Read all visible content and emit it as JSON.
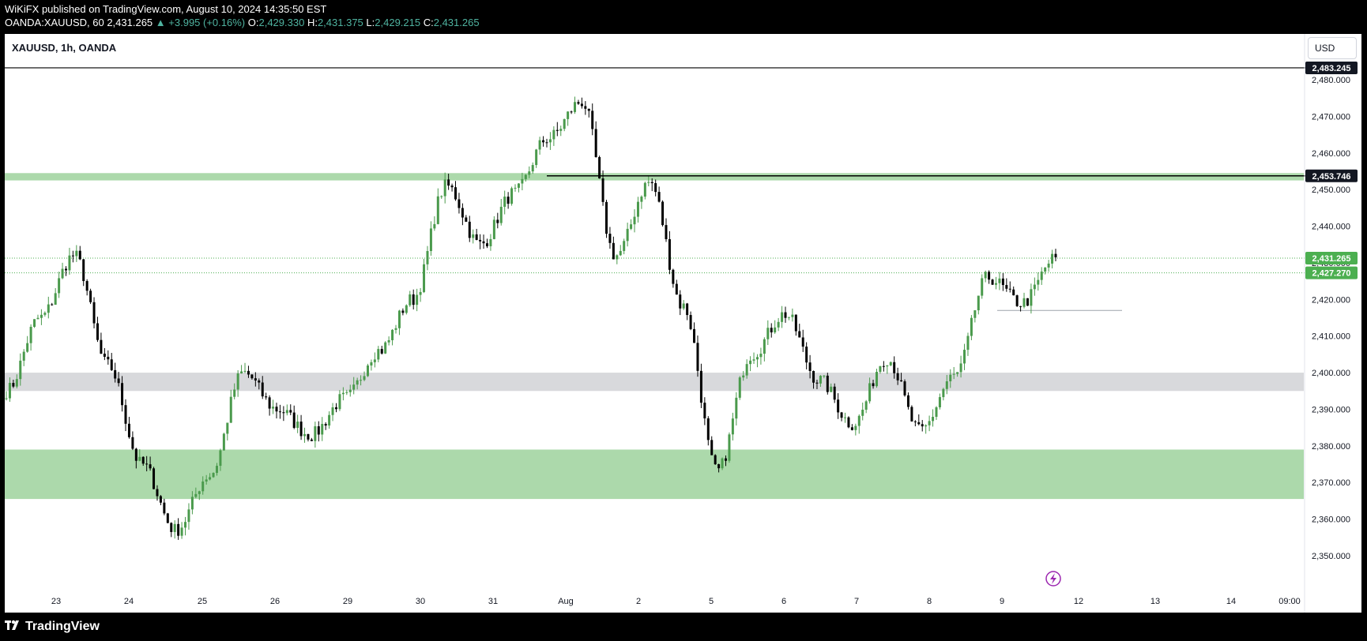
{
  "header": {
    "published_line": "WiKiFX published on TradingView.com, August 10, 2024 14:35:50 EST",
    "ticker": "OANDA:XAUUSD, 60",
    "last": "2,431.265",
    "change": "▲ +3.995 (+0.16%)",
    "o_label": "O:",
    "o_value": "2,429.330",
    "h_label": "H:",
    "h_value": "2,431.375",
    "l_label": "L:",
    "l_value": "2,429.215",
    "c_label": "C:",
    "c_value": "2,431.265"
  },
  "chart_header": {
    "symbol": "XAUUSD, 1h, OANDA",
    "currency_button": "USD"
  },
  "brand": {
    "name": "TradingView",
    "logo_icon": "tradingview-logo-icon"
  },
  "colors": {
    "up": "#4a9a4c",
    "down": "#000000",
    "zone_green": "#acd9ab",
    "zone_gray": "#d8d9dc",
    "label_green": "#4caf50",
    "label_dark": "#131722"
  },
  "chart_data": {
    "type": "candlestick",
    "ylim": [
      2343,
      2486
    ],
    "y_ticks": [
      "2,350.000",
      "2,360.000",
      "2,370.000",
      "2,380.000",
      "2,390.000",
      "2,400.000",
      "2,410.000",
      "2,420.000",
      "2,430.000",
      "2,440.000",
      "2,450.000",
      "2,460.000",
      "2,470.000",
      "2,480.000"
    ],
    "y_tick_values": [
      2350,
      2360,
      2370,
      2380,
      2390,
      2400,
      2410,
      2420,
      2430,
      2440,
      2450,
      2460,
      2470,
      2480
    ],
    "x_labels": [
      "23",
      "24",
      "25",
      "26",
      "29",
      "30",
      "31",
      "Aug",
      "2",
      "5",
      "6",
      "7",
      "8",
      "9",
      "12",
      "13",
      "14",
      "09:00"
    ],
    "price_labels": [
      {
        "text": "2,483.245",
        "value": 2483.245,
        "style": "dark"
      },
      {
        "text": "2,453.746",
        "value": 2453.746,
        "style": "dark"
      },
      {
        "text": "2,431.265",
        "value": 2431.265,
        "style": "green"
      },
      {
        "text": "2,427.270",
        "value": 2427.27,
        "style": "green"
      }
    ],
    "zones": [
      {
        "name": "resistance-zone",
        "from": 2452.5,
        "to": 2454.5,
        "color": "green"
      },
      {
        "name": "pivot-zone",
        "from": 2395,
        "to": 2400,
        "color": "gray"
      },
      {
        "name": "support-zone",
        "from": 2365.5,
        "to": 2379,
        "color": "green"
      }
    ],
    "lines": [
      {
        "name": "top-line",
        "value": 2483.245
      },
      {
        "name": "resistance-line",
        "value": 2453.746
      },
      {
        "name": "local-low-line",
        "value": 2417
      }
    ],
    "anchors": [
      {
        "label": "23",
        "value": 2395
      },
      {
        "label": "24",
        "value": 2415
      },
      {
        "label": "24b",
        "value": 2432
      },
      {
        "label": "25",
        "value": 2402
      },
      {
        "label": "25b",
        "value": 2375
      },
      {
        "label": "26",
        "value": 2357
      },
      {
        "label": "26b",
        "value": 2372
      },
      {
        "label": "29",
        "value": 2400
      },
      {
        "label": "29b",
        "value": 2390
      },
      {
        "label": "30",
        "value": 2383
      },
      {
        "label": "30b",
        "value": 2393
      },
      {
        "label": "31",
        "value": 2406
      },
      {
        "label": "31b",
        "value": 2420
      },
      {
        "label": "Aug",
        "value": 2451
      },
      {
        "label": "Aug1b",
        "value": 2435
      },
      {
        "label": "Aug1c",
        "value": 2449
      },
      {
        "label": "2",
        "value": 2464
      },
      {
        "label": "2b",
        "value": 2474
      },
      {
        "label": "2c",
        "value": 2432
      },
      {
        "label": "5",
        "value": 2452
      },
      {
        "label": "5b",
        "value": 2418
      },
      {
        "label": "5c",
        "value": 2373
      },
      {
        "label": "5d",
        "value": 2405
      },
      {
        "label": "6",
        "value": 2416
      },
      {
        "label": "6b",
        "value": 2398
      },
      {
        "label": "7",
        "value": 2386
      },
      {
        "label": "7b",
        "value": 2404
      },
      {
        "label": "8",
        "value": 2384
      },
      {
        "label": "8b",
        "value": 2399
      },
      {
        "label": "9",
        "value": 2426
      },
      {
        "label": "9b",
        "value": 2419
      },
      {
        "label": "end",
        "value": 2431.265
      }
    ]
  }
}
